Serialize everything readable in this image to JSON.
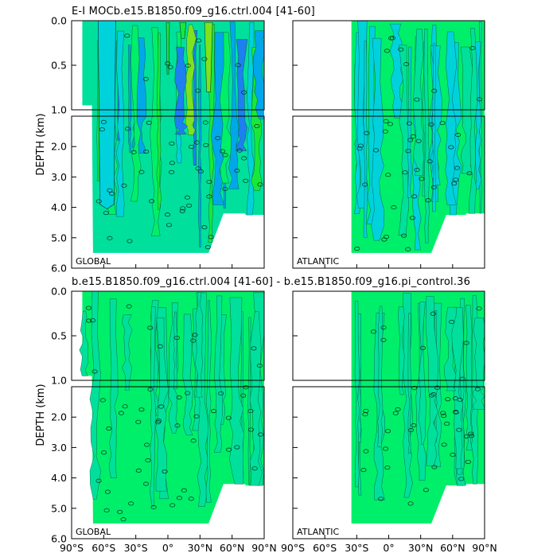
{
  "chart_data": [
    {
      "type": "contour",
      "title": "E-I MOCb.e15.B1850.f09_g16.ctrl.004 [41-60]",
      "ylabel": "DEPTH (km)",
      "xlabel": "",
      "x_ticks": [
        "90°S",
        "60°S",
        "30°S",
        "0°",
        "30°N",
        "60°N",
        "90°N"
      ],
      "xlim": [
        -90,
        90
      ],
      "y_ticks_upper": [
        "0.0",
        "0.5",
        "1.0"
      ],
      "y_ticks_lower": [
        "1.0",
        "2.0",
        "3.0",
        "4.0",
        "5.0",
        "6.0"
      ],
      "ylim": [
        0,
        6
      ],
      "y_break_km": 1.0,
      "contour_label": "0",
      "panels": [
        {
          "basin": "GLOBAL",
          "lat_range": [
            -80,
            90
          ],
          "fill_levels": [
            "#00e09c",
            "#00ef6a",
            "#18e83a",
            "#7fe21e",
            "#00d2dc",
            "#00a8ea",
            "#1d7ff0"
          ],
          "features": [
            "southern cell minimum near 55°S",
            "positive maxima near 35°N-45°N upper ocean"
          ]
        },
        {
          "basin": "ATLANTIC",
          "lat_range": [
            -35,
            90
          ],
          "fill_levels": [
            "#00ef6a",
            "#00e09c",
            "#00d2dc"
          ]
        }
      ]
    },
    {
      "type": "contour",
      "title": "b.e15.B1850.f09_g16.ctrl.004 [41-60] - b.e15.B1850.f09_g16.pi_control.36",
      "ylabel": "DEPTH (km)",
      "xlabel": "",
      "x_ticks": [
        "90°S",
        "60°S",
        "30°S",
        "0°",
        "30°N",
        "60°N",
        "90°N"
      ],
      "xlim": [
        -90,
        90
      ],
      "y_ticks_upper": [
        "0.0",
        "0.5",
        "1.0"
      ],
      "y_ticks_lower": [
        "1.0",
        "2.0",
        "3.0",
        "4.0",
        "5.0",
        "6.0"
      ],
      "ylim": [
        0,
        6
      ],
      "y_break_km": 1.0,
      "contour_label": "0",
      "panels": [
        {
          "basin": "GLOBAL",
          "lat_range": [
            -80,
            90
          ],
          "fill_levels": [
            "#00ef6a",
            "#00e09c"
          ]
        },
        {
          "basin": "ATLANTIC",
          "lat_range": [
            -35,
            90
          ],
          "fill_levels": [
            "#00ef6a",
            "#00e09c"
          ]
        }
      ]
    }
  ]
}
